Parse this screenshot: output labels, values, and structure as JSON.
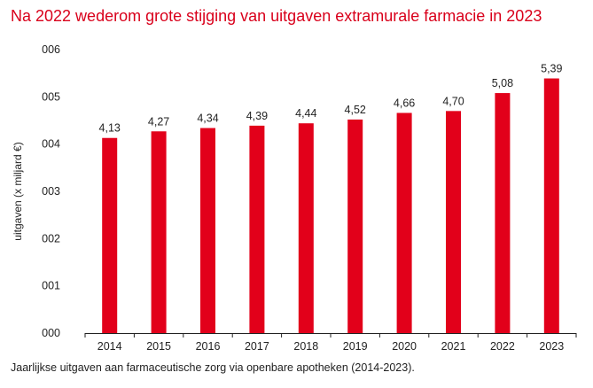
{
  "title": "Na 2022 wederom grote stijging van uitgaven extramurale farmacie in 2023",
  "caption": "Jaarlijkse uitgaven aan farmaceutische zorg via openbare apotheken (2014-2023).",
  "colors": {
    "bar": "#e2001a",
    "title": "#d9001b",
    "axis": "#222222"
  },
  "chart_data": {
    "type": "bar",
    "title": "Na 2022 wederom grote stijging van uitgaven extramurale farmacie in 2023",
    "xlabel": "",
    "ylabel": "uitgaven (x miljard €)",
    "categories": [
      "2014",
      "2015",
      "2016",
      "2017",
      "2018",
      "2019",
      "2020",
      "2021",
      "2022",
      "2023"
    ],
    "values": [
      4.13,
      4.27,
      4.34,
      4.39,
      4.44,
      4.52,
      4.66,
      4.7,
      5.08,
      5.39
    ],
    "data_labels": [
      "4,13",
      "4,27",
      "4,34",
      "4,39",
      "4,44",
      "4,52",
      "4,66",
      "4,70",
      "5,08",
      "5,39"
    ],
    "ylim": [
      0,
      6
    ],
    "yticks": [
      0,
      1,
      2,
      3,
      4,
      5,
      6
    ],
    "ytick_labels": [
      "000",
      "001",
      "002",
      "003",
      "004",
      "005",
      "006"
    ],
    "grid": false
  }
}
